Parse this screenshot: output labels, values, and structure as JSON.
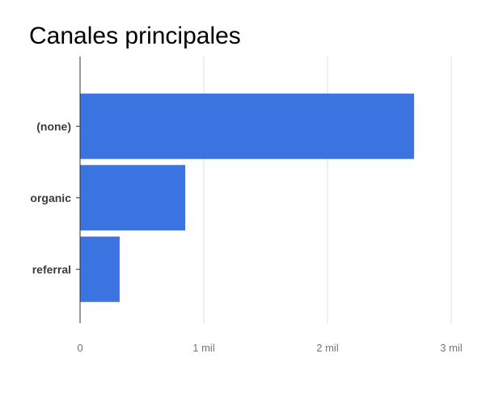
{
  "chart_data": {
    "type": "bar",
    "orientation": "horizontal",
    "title": "Canales principales",
    "categories": [
      "(none)",
      "organic",
      "referral"
    ],
    "values": [
      2700,
      850,
      320
    ],
    "xlim": [
      0,
      3000
    ],
    "xticks": [
      0,
      1000,
      2000,
      3000
    ],
    "xtick_labels": [
      "0",
      "1 mil",
      "2 mil",
      "3 mil"
    ],
    "xlabel": "",
    "ylabel": "",
    "grid": true,
    "legend": "none",
    "bar_color": "#3b73e1"
  }
}
